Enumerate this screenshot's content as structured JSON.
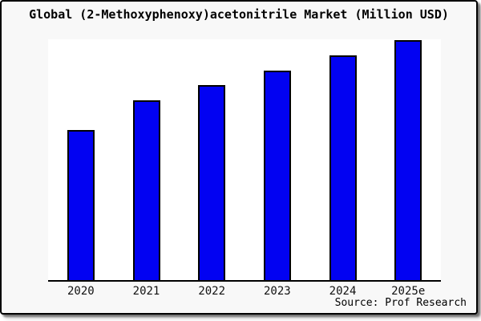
{
  "chart_data": {
    "type": "bar",
    "title": "Global (2-Methoxyphenoxy)acetonitrile Market (Million USD)",
    "categories": [
      "2020",
      "2021",
      "2022",
      "2023",
      "2024",
      "2025e"
    ],
    "values": [
      62.5,
      74.9,
      81.3,
      87.3,
      93.6,
      100
    ],
    "value_scale_note": "relative bar heights, tallest bar (2025e) = 100; no y-axis scale shown in chart",
    "xlabel": "",
    "ylabel": "",
    "ylim": [
      0,
      100.3
    ],
    "grid": false,
    "legend": false,
    "bar_color": "#0202f2",
    "bar_border_color": "#000000"
  },
  "footer": {
    "source": "Source: Prof Research"
  },
  "colors": {
    "panel_background": "#f8f8f8",
    "plot_background": "#ffffff",
    "panel_border": "#000000",
    "axis_line": "#000000",
    "title_text": "#000000",
    "tick_text": "#111111",
    "source_text": "#000000"
  }
}
